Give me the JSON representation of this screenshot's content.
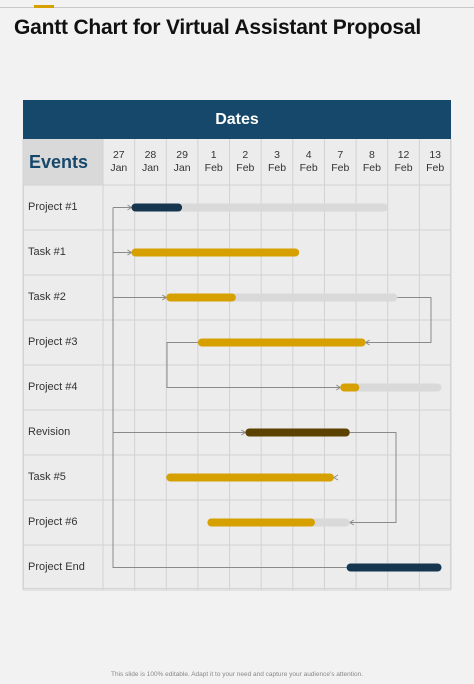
{
  "title": "Gantt Chart for Virtual Assistant Proposal",
  "footer": "This slide is 100% editable. Adapt it to your need and capture your audience's attention.",
  "colors": {
    "header": "#16486b",
    "accent": "#d6a000",
    "navy_bar": "#16354f",
    "gold_bar": "#d6a000",
    "brown_bar": "#5c4200",
    "track": "#d9d9d9",
    "connector": "#8a8a8a"
  },
  "chart_data": {
    "type": "gantt",
    "header": "Dates",
    "events_label": "Events",
    "dates": [
      {
        "day": "27",
        "month": "Jan"
      },
      {
        "day": "28",
        "month": "Jan"
      },
      {
        "day": "29",
        "month": "Jan"
      },
      {
        "day": "1",
        "month": "Feb"
      },
      {
        "day": "2",
        "month": "Feb"
      },
      {
        "day": "3",
        "month": "Feb"
      },
      {
        "day": "4",
        "month": "Feb"
      },
      {
        "day": "7",
        "month": "Feb"
      },
      {
        "day": "8",
        "month": "Feb"
      },
      {
        "day": "12",
        "month": "Feb"
      },
      {
        "day": "13",
        "month": "Feb"
      }
    ],
    "tasks": [
      {
        "name": "Project #1",
        "bar_start": 0.9,
        "bar_end": 2.5,
        "track_end": 9.0,
        "color": "navy"
      },
      {
        "name": "Task #1",
        "bar_start": 0.9,
        "bar_end": 6.2,
        "track_end": 6.2,
        "color": "gold"
      },
      {
        "name": "Task #2",
        "bar_start": 2.0,
        "bar_end": 4.2,
        "track_end": 9.3,
        "color": "gold"
      },
      {
        "name": "Project #3",
        "bar_start": 3.0,
        "bar_end": 8.3,
        "track_end": 8.3,
        "color": "gold"
      },
      {
        "name": "Project #4",
        "bar_start": 7.5,
        "bar_end": 8.1,
        "track_end": 10.7,
        "color": "gold"
      },
      {
        "name": "Revision",
        "bar_start": 4.5,
        "bar_end": 7.8,
        "track_end": 7.8,
        "color": "brown"
      },
      {
        "name": "Task #5",
        "bar_start": 2.0,
        "bar_end": 7.3,
        "track_end": 7.3,
        "color": "gold"
      },
      {
        "name": "Project #6",
        "bar_start": 3.3,
        "bar_end": 6.7,
        "track_end": 7.8,
        "color": "gold"
      },
      {
        "name": "Project End",
        "bar_start": 7.7,
        "bar_end": 10.7,
        "track_end": 10.7,
        "color": "navy"
      }
    ]
  }
}
